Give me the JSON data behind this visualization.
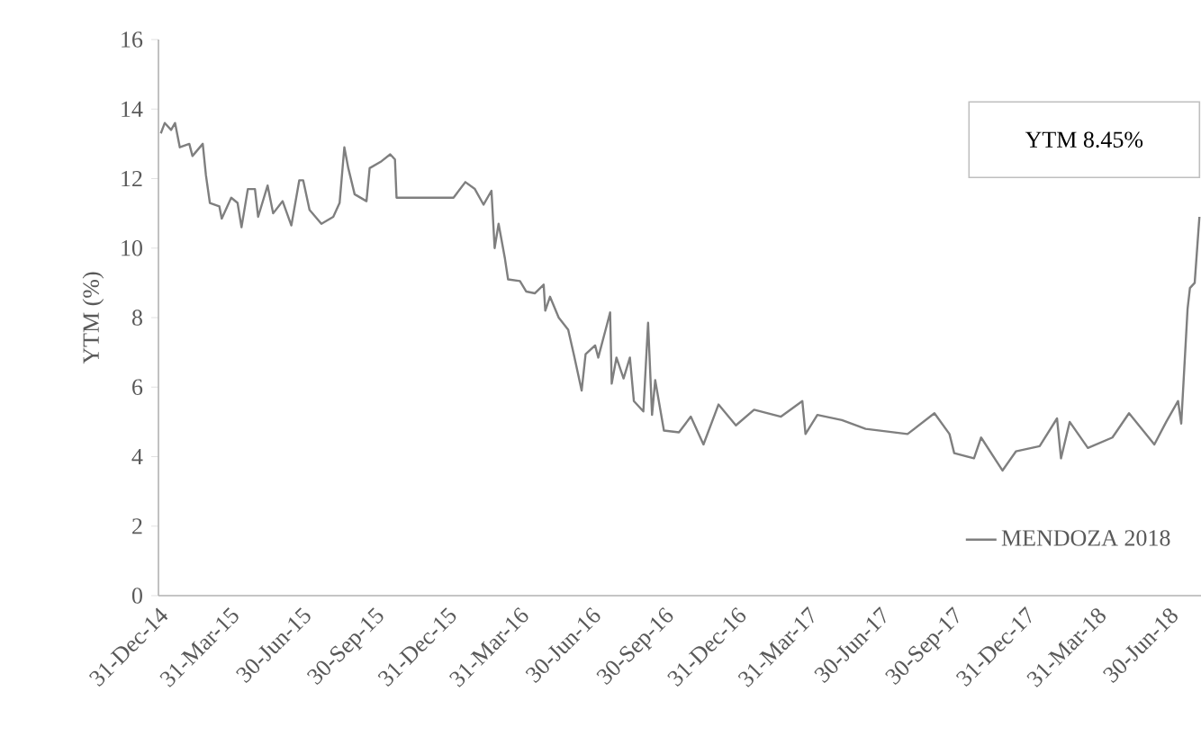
{
  "chart_data": {
    "type": "line",
    "ylabel": "YTM (%)",
    "legend": "bottom right",
    "annotations": [
      "YTM 8.45%"
    ],
    "xlim": [
      "2014-12-31",
      "2018-08-10"
    ],
    "ylim": [
      0,
      16
    ],
    "yticks": [
      0,
      2,
      4,
      6,
      8,
      10,
      12,
      14,
      16
    ],
    "xticks": [
      {
        "value": "2014-12-31",
        "label": "31-Dec-14"
      },
      {
        "value": "2015-03-31",
        "label": "31-Mar-15"
      },
      {
        "value": "2015-06-30",
        "label": "30-Jun-15"
      },
      {
        "value": "2015-09-30",
        "label": "30-Sep-15"
      },
      {
        "value": "2015-12-31",
        "label": "31-Dec-15"
      },
      {
        "value": "2016-03-31",
        "label": "31-Mar-16"
      },
      {
        "value": "2016-06-30",
        "label": "30-Jun-16"
      },
      {
        "value": "2016-09-30",
        "label": "30-Sep-16"
      },
      {
        "value": "2016-12-31",
        "label": "31-Dec-16"
      },
      {
        "value": "2017-03-31",
        "label": "31-Mar-17"
      },
      {
        "value": "2017-06-30",
        "label": "30-Jun-17"
      },
      {
        "value": "2017-09-30",
        "label": "30-Sep-17"
      },
      {
        "value": "2017-12-31",
        "label": "31-Dec-17"
      },
      {
        "value": "2018-03-31",
        "label": "31-Mar-18"
      },
      {
        "value": "2018-06-30",
        "label": "30-Jun-18"
      }
    ],
    "x": [
      "2015-01-03",
      "2015-01-08",
      "2015-01-16",
      "2015-01-21",
      "2015-01-27",
      "2015-02-08",
      "2015-02-12",
      "2015-02-25",
      "2015-03-01",
      "2015-03-06",
      "2015-03-18",
      "2015-03-21",
      "2015-04-02",
      "2015-04-10",
      "2015-04-15",
      "2015-04-23",
      "2015-05-02",
      "2015-05-06",
      "2015-05-18",
      "2015-05-25",
      "2015-06-06",
      "2015-06-17",
      "2015-06-27",
      "2015-07-02",
      "2015-07-10",
      "2015-07-25",
      "2015-08-09",
      "2015-08-17",
      "2015-08-23",
      "2015-08-28",
      "2015-09-05",
      "2015-09-20",
      "2015-09-24",
      "2015-10-09",
      "2015-10-20",
      "2015-10-26",
      "2015-10-28",
      "2016-01-08",
      "2016-01-23",
      "2016-02-04",
      "2016-02-15",
      "2016-02-25",
      "2016-02-29",
      "2016-03-05",
      "2016-03-13",
      "2016-03-17",
      "2016-04-01",
      "2016-04-09",
      "2016-04-20",
      "2016-05-01",
      "2016-05-03",
      "2016-05-09",
      "2016-05-20",
      "2016-06-01",
      "2016-06-08",
      "2016-06-18",
      "2016-06-23",
      "2016-07-05",
      "2016-07-09",
      "2016-07-20",
      "2016-07-24",
      "2016-07-26",
      "2016-08-01",
      "2016-08-10",
      "2016-08-18",
      "2016-08-23",
      "2016-09-04",
      "2016-09-10",
      "2016-09-15",
      "2016-09-19",
      "2016-09-30",
      "2016-10-19",
      "2016-11-03",
      "2016-11-19",
      "2016-12-08",
      "2016-12-30",
      "2017-01-22",
      "2017-02-25",
      "2017-03-24",
      "2017-03-28",
      "2017-04-12",
      "2017-05-13",
      "2017-06-12",
      "2017-08-04",
      "2017-09-07",
      "2017-09-26",
      "2017-10-02",
      "2017-10-27",
      "2017-11-05",
      "2017-12-02",
      "2017-12-19",
      "2018-01-18",
      "2018-02-09",
      "2018-02-14",
      "2018-02-25",
      "2018-03-20",
      "2018-04-20",
      "2018-05-11",
      "2018-06-12",
      "2018-06-27",
      "2018-07-12",
      "2018-07-16",
      "2018-07-24",
      "2018-07-27",
      "2018-08-02",
      "2018-08-08"
    ],
    "series": [
      {
        "name": "MENDOZA 2018",
        "color": "#7f7f7f",
        "line_style": "solid",
        "values": [
          13.3,
          13.6,
          13.4,
          13.6,
          12.9,
          13.0,
          12.65,
          13.0,
          12.1,
          11.3,
          11.2,
          10.85,
          11.45,
          11.3,
          10.6,
          11.7,
          11.7,
          10.9,
          11.8,
          11.0,
          11.35,
          10.65,
          11.95,
          11.95,
          11.1,
          10.7,
          10.9,
          11.3,
          12.9,
          12.3,
          11.55,
          11.35,
          12.3,
          12.5,
          12.7,
          12.55,
          11.45,
          11.45,
          11.9,
          11.7,
          11.25,
          11.65,
          10.0,
          10.7,
          9.7,
          9.1,
          9.05,
          8.75,
          8.7,
          8.95,
          8.2,
          8.6,
          8.0,
          7.65,
          6.95,
          5.9,
          6.95,
          7.2,
          6.85,
          7.8,
          8.15,
          6.1,
          6.85,
          6.25,
          6.85,
          5.6,
          5.3,
          7.85,
          5.2,
          6.2,
          4.75,
          4.7,
          5.15,
          4.35,
          5.5,
          4.9,
          5.35,
          5.15,
          5.6,
          4.65,
          5.2,
          5.05,
          4.8,
          4.65,
          5.25,
          4.65,
          4.1,
          3.95,
          4.55,
          3.6,
          4.15,
          4.3,
          5.1,
          3.95,
          5.0,
          4.25,
          4.55,
          5.25,
          4.35,
          5.0,
          5.6,
          4.95,
          8.25,
          8.85,
          9.0,
          10.9
        ]
      }
    ]
  }
}
